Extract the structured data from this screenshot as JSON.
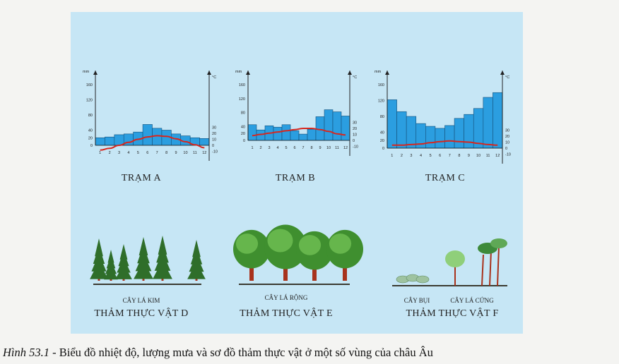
{
  "chart_data": [
    {
      "type": "bar",
      "title": "TRẠM A",
      "categories": [
        "1",
        "2",
        "3",
        "4",
        "5",
        "6",
        "7",
        "8",
        "9",
        "10",
        "11",
        "12"
      ],
      "y_left_unit": "mm",
      "y_left_ticks": [
        0,
        20,
        40,
        80,
        120,
        160
      ],
      "y_right_unit": "°C",
      "y_right_ticks": [
        -10,
        0,
        10,
        20,
        30
      ],
      "series": [
        {
          "type": "bar",
          "axis": "left",
          "values": [
            20,
            22,
            28,
            30,
            35,
            55,
            45,
            40,
            30,
            25,
            20,
            18
          ]
        },
        {
          "type": "line",
          "axis": "right",
          "color": "#d8261d",
          "values": [
            -8,
            -5,
            0,
            5,
            10,
            14,
            16,
            15,
            11,
            6,
            1,
            -4
          ]
        }
      ]
    },
    {
      "type": "bar",
      "title": "TRẠM B",
      "categories": [
        "1",
        "2",
        "3",
        "4",
        "5",
        "6",
        "7",
        "8",
        "9",
        "10",
        "11",
        "12"
      ],
      "y_left_unit": "mm",
      "y_left_ticks": [
        0,
        20,
        40,
        80,
        120,
        160
      ],
      "y_right_unit": "°C",
      "y_right_ticks": [
        -10,
        0,
        10,
        20,
        30
      ],
      "series": [
        {
          "type": "bar",
          "axis": "left",
          "values": [
            45,
            30,
            42,
            38,
            45,
            28,
            18,
            32,
            68,
            88,
            82,
            70
          ]
        },
        {
          "type": "line",
          "axis": "right",
          "color": "#d8261d",
          "values": [
            8,
            10,
            12,
            14,
            16,
            18,
            20,
            20,
            18,
            15,
            11,
            9
          ]
        }
      ]
    },
    {
      "type": "bar",
      "title": "TRẠM C",
      "categories": [
        "1",
        "2",
        "3",
        "4",
        "5",
        "6",
        "7",
        "8",
        "9",
        "10",
        "11",
        "12"
      ],
      "y_left_unit": "mm",
      "y_left_ticks": [
        0,
        20,
        40,
        80,
        120,
        160
      ],
      "y_right_unit": "°C",
      "y_right_ticks": [
        -10,
        0,
        10,
        20,
        30
      ],
      "series": [
        {
          "type": "bar",
          "axis": "left",
          "values": [
            122,
            92,
            80,
            62,
            55,
            50,
            57,
            75,
            85,
            100,
            128,
            140
          ]
        },
        {
          "type": "line",
          "axis": "right",
          "color": "#d8261d",
          "values": [
            5,
            5,
            6,
            7,
            9,
            11,
            12,
            11,
            10,
            8,
            6,
            5
          ]
        }
      ]
    }
  ],
  "vegetation": [
    {
      "sub": "CÂY LÁ KIM",
      "label": "THẢM THỰC VẬT D"
    },
    {
      "sub": "CÂY LÁ RỘNG",
      "label": "THẢM THỰC VẬT  E"
    },
    {
      "sub1": "CÂY BỤI",
      "sub2": "CÂY LÁ CỨNG",
      "label": "THẢM THỰC VẬT F"
    }
  ],
  "caption": {
    "figure": "Hình 53.1",
    "text": " - Biểu đồ nhiệt độ, lượng mưa và sơ đồ thảm thực vật ở một số vùng của châu Âu"
  },
  "colors": {
    "bar": "#2b9ee0",
    "bar_stroke": "#14507a",
    "line": "#d8261d",
    "panel": "#c6e6f5",
    "conifer": "#2f6e2a",
    "broadleaf": "#4fa23a",
    "trunk": "#a8321c"
  }
}
